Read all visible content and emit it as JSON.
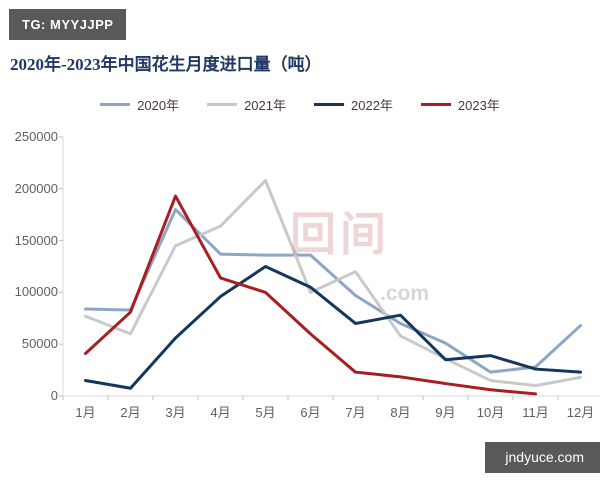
{
  "badge_top": {
    "label": "TG: MYYJJPP"
  },
  "title": "2020年-2023年中国花生月度进口量（吨）",
  "watermark": {
    "glyphs": "回间",
    "text": ".com"
  },
  "footer_badge": {
    "label": "jndyuce.com"
  },
  "colors": {
    "title": "#1f3864",
    "axis_text": "#5f5f5f",
    "axis_line": "#d9d9d9",
    "legend_text": "#513737",
    "badge_bg": "#58595b"
  },
  "chart_data": {
    "type": "line",
    "title": "2020年-2023年中国花生月度进口量（吨）",
    "categories": [
      "1月",
      "2月",
      "3月",
      "4月",
      "5月",
      "6月",
      "7月",
      "8月",
      "9月",
      "10月",
      "11月",
      "12月"
    ],
    "series": [
      {
        "name": "2020年",
        "color": "#8fa5c6",
        "values": [
          84000,
          83000,
          180000,
          137000,
          136000,
          136000,
          97000,
          70000,
          51000,
          23000,
          28000,
          68000
        ]
      },
      {
        "name": "2021年",
        "color": "#c9c9c9",
        "values": [
          77000,
          60000,
          145000,
          164000,
          208000,
          100000,
          120000,
          58000,
          36000,
          15000,
          10000,
          18000
        ]
      },
      {
        "name": "2022年",
        "color": "#17365d",
        "values": [
          15000,
          7500,
          56000,
          96000,
          125000,
          105000,
          70000,
          78000,
          35000,
          39000,
          26000,
          23000
        ]
      },
      {
        "name": "2023年",
        "color": "#a91e22",
        "values": [
          41000,
          81000,
          193000,
          114000,
          100000,
          60000,
          23000,
          18500,
          12000,
          6000,
          2000,
          null
        ]
      }
    ],
    "ylim": [
      0,
      250000
    ],
    "ytick_values": [
      0,
      50000,
      100000,
      150000,
      200000,
      250000
    ],
    "ytick_labels": [
      "0",
      "50000",
      "100000",
      "150000",
      "200000",
      "250000"
    ],
    "xlabel": "",
    "ylabel": "",
    "grid": false,
    "legend_position": "top"
  }
}
